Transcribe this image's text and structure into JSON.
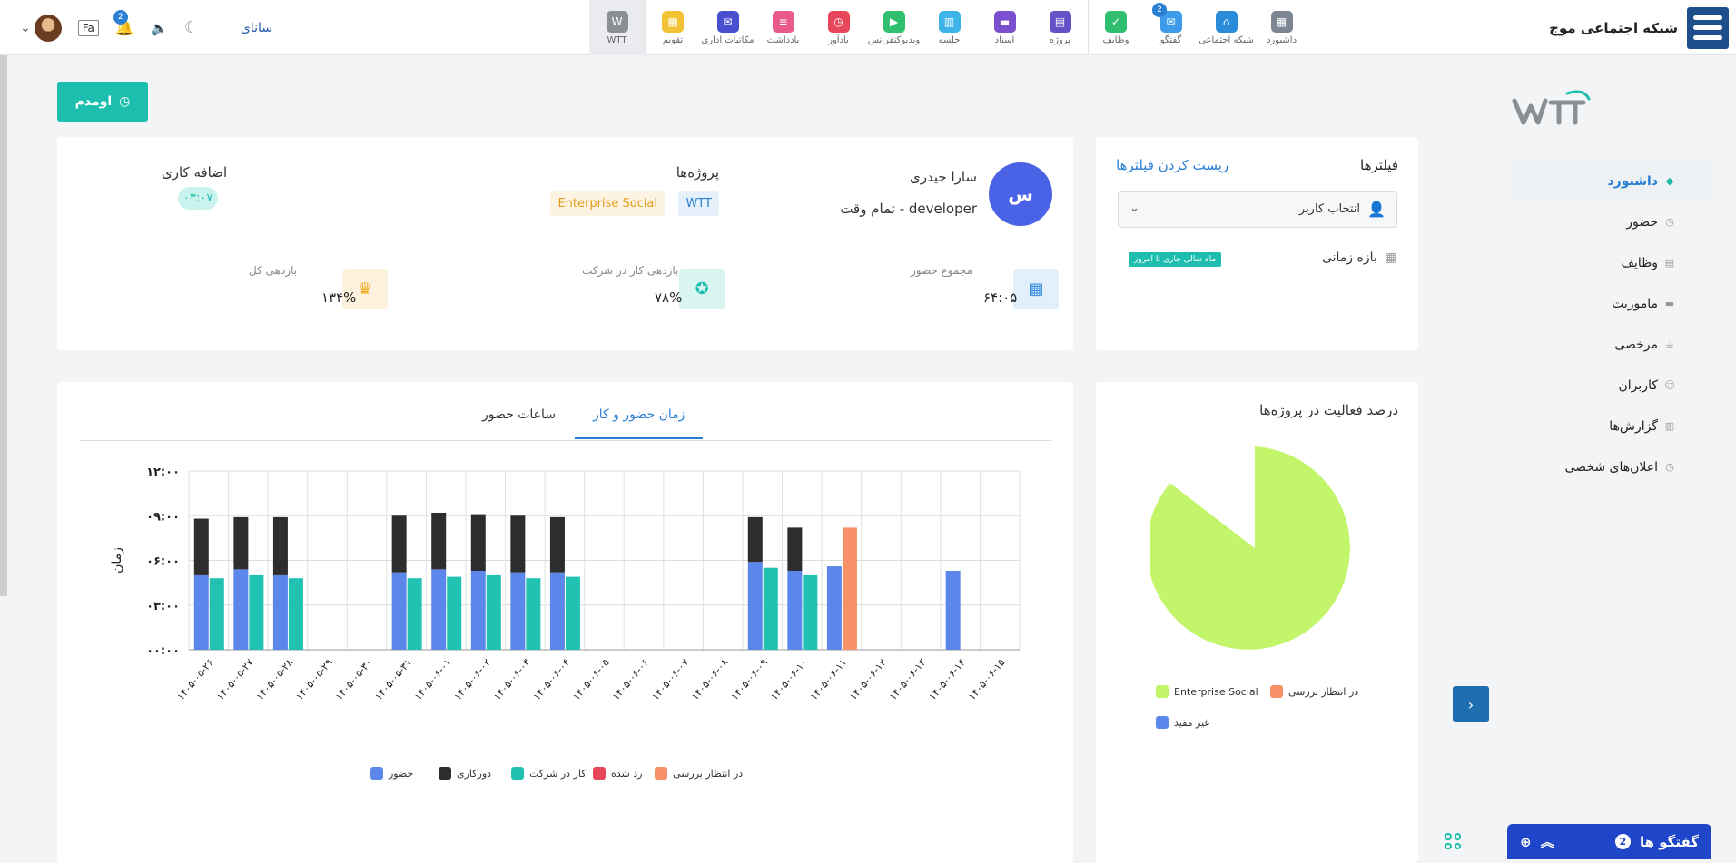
{
  "brand": {
    "name": "شبکه اجتماعی موج"
  },
  "apps": [
    {
      "label": "داشبورد",
      "color": "#7d8794",
      "icon": "grid-icon",
      "glyph": "▦"
    },
    {
      "label": "شبکه اجتماعی",
      "color": "#2a8bd8",
      "icon": "home-icon",
      "glyph": "⌂"
    },
    {
      "label": "گفتگو",
      "color": "#3d9be9",
      "icon": "chat-icon",
      "glyph": "✉",
      "badge": "2"
    },
    {
      "label": "وظایف",
      "color": "#2fbf6e",
      "icon": "check-icon",
      "glyph": "✓"
    },
    {
      "label": "پروژه",
      "color": "#6652c8",
      "icon": "presentation-icon",
      "glyph": "▤"
    },
    {
      "label": "اسناد",
      "color": "#7a4fd0",
      "icon": "folder-icon",
      "glyph": "▬"
    },
    {
      "label": "جلسه",
      "color": "#3db4e8",
      "icon": "meeting-icon",
      "glyph": "▥"
    },
    {
      "label": "ویدیوکنفرانس",
      "color": "#2fbf6e",
      "icon": "video-icon",
      "glyph": "▶"
    },
    {
      "label": "یادآور",
      "color": "#e8465a",
      "icon": "alarm-icon",
      "glyph": "◷"
    },
    {
      "label": "یادداشت",
      "color": "#e85a8a",
      "icon": "note-icon",
      "glyph": "≡"
    },
    {
      "label": "مکاتبات اداری",
      "color": "#4a4fd0",
      "icon": "mail-icon",
      "glyph": "✉"
    },
    {
      "label": "تقویم",
      "color": "#f2c234",
      "icon": "calendar-icon",
      "glyph": "▦"
    },
    {
      "label": "WTT",
      "color": "#8a8f96",
      "icon": "wtt-icon",
      "glyph": "W",
      "active": true
    }
  ],
  "topleft": {
    "username": "سانای",
    "lang": "Fa",
    "bell_badge": "2"
  },
  "sidebar": {
    "items": [
      {
        "label": "داشبورد",
        "icon": "layers-icon",
        "glyph": "◆",
        "active": true
      },
      {
        "label": "حضور",
        "icon": "clock-icon",
        "glyph": "◷"
      },
      {
        "label": "وظایف",
        "icon": "tasks-icon",
        "glyph": "▤"
      },
      {
        "label": "ماموریت",
        "icon": "briefcase-icon",
        "glyph": "▬"
      },
      {
        "label": "مرخصی",
        "icon": "cup-icon",
        "glyph": "☕"
      },
      {
        "label": "کاربران",
        "icon": "users-icon",
        "glyph": "☺"
      },
      {
        "label": "گزارش‌ها",
        "icon": "report-icon",
        "glyph": "▥"
      },
      {
        "label": "اعلان‌های شخصی",
        "icon": "bell-icon",
        "glyph": "◷"
      }
    ]
  },
  "attend_button": "اومدم",
  "filters": {
    "title": "فیلترها",
    "reset": "ریست کردن فیلترها",
    "user_select": "انتخاب کاربر",
    "range_label": "بازه زمانی",
    "range_tag": "ماه سالی جاری تا امروز"
  },
  "profile": {
    "avatar_letter": "س",
    "name": "سارا حیدری",
    "role": "تمام وقت - developer",
    "projects_title": "پروژه‌ها",
    "projects": [
      "WTT",
      "Enterprise Social"
    ],
    "overtime_title": "اضافه کاری",
    "overtime_value": "۰۳:۰۷",
    "stats": [
      {
        "title": "مجموع حضور",
        "value": "۶۴:۰۵",
        "icon": "calendar-icon",
        "glyph": "▦",
        "bg": "#e3f0fb",
        "fg": "#3a8fe0"
      },
      {
        "title": "بازدهی کار در شرکت",
        "value": "۷۸%",
        "icon": "medal-icon",
        "glyph": "✪",
        "bg": "#d8f5f1",
        "fg": "#1ebeae"
      },
      {
        "title": "بازدهی کل",
        "value": "۱۳۴%",
        "icon": "trophy-icon",
        "glyph": "♛",
        "bg": "#fdf2de",
        "fg": "#f2a81b"
      }
    ]
  },
  "pie": {
    "title": "درصد فعالیت در پروژه‌ها",
    "legend": [
      {
        "label": "Enterprise Social",
        "color": "#c3f56a"
      },
      {
        "label": "در انتظار بررسی",
        "color": "#f79168"
      },
      {
        "label": "غیر مفید",
        "color": "#5b86ea"
      }
    ]
  },
  "tabs": [
    {
      "label": "زمان حضور و کار",
      "active": true
    },
    {
      "label": "ساعات حضور",
      "active": false
    }
  ],
  "chart_data": {
    "type": "bar",
    "ylabel": "زمان",
    "ytick_labels": [
      "۰۰:۰۰",
      "۰۳:۰۰",
      "۰۶:۰۰",
      "۰۹:۰۰",
      "۱۲:۰۰"
    ],
    "ylim": [
      0,
      12
    ],
    "categories": [
      "۱۴۰۵-۰۵-۲۶",
      "۱۴۰۵-۰۵-۲۷",
      "۱۴۰۵-۰۵-۲۸",
      "۱۴۰۵-۰۵-۲۹",
      "۱۴۰۵-۰۵-۳۰",
      "۱۴۰۵-۰۵-۳۱",
      "۱۴۰۵-۰۶-۰۱",
      "۱۴۰۵-۰۶-۰۲",
      "۱۴۰۵-۰۶-۰۳",
      "۱۴۰۵-۰۶-۰۴",
      "۱۴۰۵-۰۶-۰۵",
      "۱۴۰۵-۰۶-۰۶",
      "۱۴۰۵-۰۶-۰۷",
      "۱۴۰۵-۰۶-۰۸",
      "۱۴۰۵-۰۶-۰۹",
      "۱۴۰۵-۰۶-۱۰",
      "۱۴۰۵-۰۶-۱۱",
      "۱۴۰۵-۰۶-۱۲",
      "۱۴۰۵-۰۶-۱۳",
      "۱۴۰۵-۰۶-۱۴",
      "۱۴۰۵-۰۶-۱۵"
    ],
    "series": [
      {
        "name": "حضور",
        "color": "#5b86ea",
        "stack": "a",
        "values": [
          5.0,
          5.4,
          5.0,
          0,
          0,
          5.2,
          5.4,
          5.3,
          5.2,
          5.2,
          0,
          0,
          0,
          0,
          5.9,
          5.3,
          5.6,
          0,
          0,
          5.3,
          0
        ]
      },
      {
        "name": "دورکاری",
        "color": "#2d2d2d",
        "stack": "a",
        "values": [
          3.8,
          3.5,
          3.9,
          0,
          0,
          3.8,
          3.8,
          3.8,
          3.8,
          3.7,
          0,
          0,
          0,
          0,
          3.0,
          2.9,
          0,
          0,
          0,
          0,
          0
        ]
      },
      {
        "name": "کار در شرکت",
        "color": "#22c2b2",
        "stack": "b",
        "values": [
          4.8,
          5.0,
          4.8,
          0,
          0,
          4.8,
          4.9,
          5.0,
          4.8,
          4.9,
          0,
          0,
          0,
          0,
          5.5,
          5.0,
          0,
          0,
          0,
          0,
          0
        ]
      },
      {
        "name": "رد شده",
        "color": "#e8465a",
        "stack": "b",
        "values": [
          0,
          0,
          0,
          0,
          0,
          0,
          0,
          0,
          0,
          0,
          0,
          0,
          0,
          0,
          0,
          0,
          0,
          0,
          0,
          0,
          0
        ]
      },
      {
        "name": "در انتظار بررسی",
        "color": "#f79168",
        "stack": "b",
        "values": [
          0,
          0,
          0,
          0,
          0,
          0,
          0,
          0,
          0,
          0,
          0,
          0,
          0,
          0,
          0,
          0,
          8.2,
          0,
          0,
          0,
          0
        ]
      }
    ]
  },
  "chat": {
    "label": "گفتگو ها",
    "badge": "2"
  }
}
